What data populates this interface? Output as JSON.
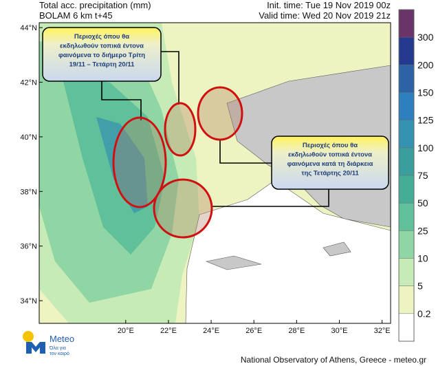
{
  "header": {
    "title": "Total acc. precipitation (mm)",
    "model": "BOLAM 6 km t+45",
    "init_time": "Init. time: Tue 19 Nov 2019 00z",
    "valid_time": "Valid time: Wed 20 Nov 2019 21z"
  },
  "map": {
    "lonlim": [
      15.95,
      32.4
    ],
    "latlim": [
      33.17,
      44.18
    ],
    "lonticks": [
      {
        "value": 20,
        "label": "20°E"
      },
      {
        "value": 22,
        "label": "22°E"
      },
      {
        "value": 24,
        "label": "24°E"
      },
      {
        "value": 26,
        "label": "26°E"
      },
      {
        "value": 28,
        "label": "28°E"
      },
      {
        "value": 30,
        "label": "30°E"
      },
      {
        "value": 32,
        "label": "32°E"
      }
    ],
    "latticks": [
      {
        "value": 34,
        "label": "34°N"
      },
      {
        "value": 36,
        "label": "36°N"
      },
      {
        "value": 38,
        "label": "38°N"
      },
      {
        "value": 40,
        "label": "40°N"
      },
      {
        "value": 42,
        "label": "42°N"
      },
      {
        "value": 44,
        "label": "44°N"
      }
    ]
  },
  "colorbar": {
    "levels": [
      0.2,
      5,
      10,
      25,
      50,
      75,
      100,
      125,
      150,
      200,
      300
    ],
    "colors": [
      "#ffffff",
      "#eef3c2",
      "#c6ebb6",
      "#8fd6a4",
      "#5fc09a",
      "#45ad95",
      "#3a9f9c",
      "#3592b0",
      "#2d7fbe",
      "#2b63a4",
      "#243a8e",
      "#6b3468"
    ]
  },
  "annotations": [
    {
      "lines": [
        "Περιοχές όπου θα",
        "εκδηλωθούν τοπικά έντονα",
        "φαινόμενα το διήμερο Τρίτη",
        "19/11 – Τετάρτη 20/11"
      ]
    },
    {
      "lines": [
        "Περιοχές όπου θα",
        "εκδηλωθούν τοπικά έντονα",
        "φαινόμενα κατά τη διάρκεια",
        "της Τετάρτης 20/11"
      ]
    }
  ],
  "logo": {
    "name": "Meteo",
    "tagline": [
      "Όλα για",
      "τον καιρό"
    ]
  },
  "footer": "National Observatory of Athens, Greece - meteo.gr"
}
